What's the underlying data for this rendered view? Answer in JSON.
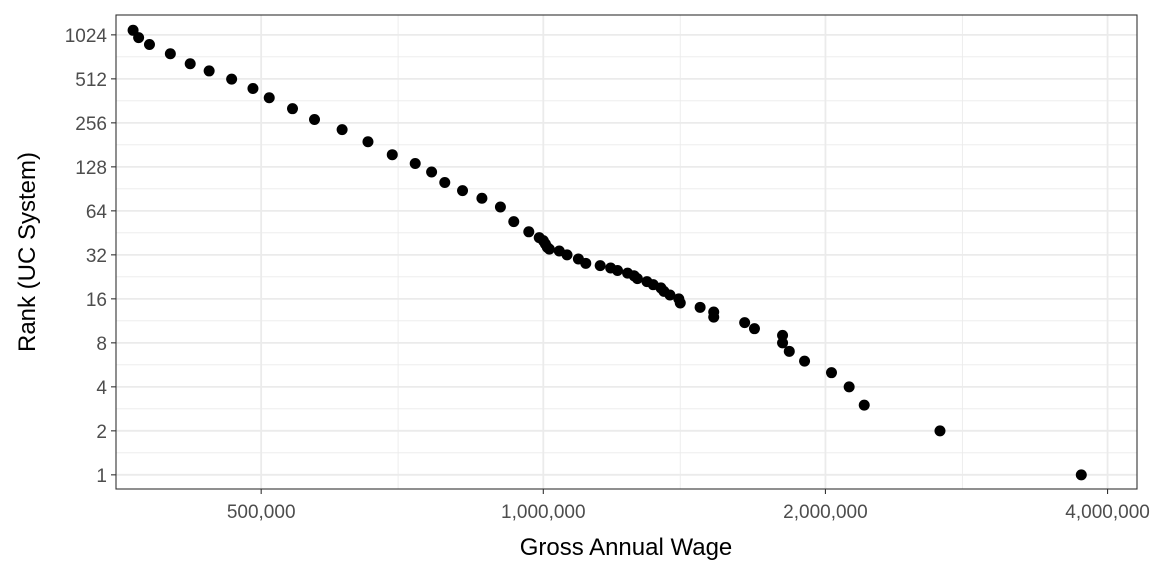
{
  "chart_data": {
    "type": "scatter",
    "title": "",
    "xlabel": "Gross Annual Wage",
    "ylabel": "Rank (UC System)",
    "x_scale": "log",
    "y_scale": "log2",
    "xlim": [
      350000,
      4300000
    ],
    "ylim": [
      0.8,
      1400
    ],
    "x_ticks": [
      {
        "value": 500000,
        "label": "500,000"
      },
      {
        "value": 1000000,
        "label": "1,000,000"
      },
      {
        "value": 2000000,
        "label": "2,000,000"
      },
      {
        "value": 4000000,
        "label": "4,000,000"
      }
    ],
    "y_ticks": [
      {
        "value": 1,
        "label": "1"
      },
      {
        "value": 2,
        "label": "2"
      },
      {
        "value": 4,
        "label": "4"
      },
      {
        "value": 8,
        "label": "8"
      },
      {
        "value": 16,
        "label": "16"
      },
      {
        "value": 32,
        "label": "32"
      },
      {
        "value": 64,
        "label": "64"
      },
      {
        "value": 128,
        "label": "128"
      },
      {
        "value": 256,
        "label": "256"
      },
      {
        "value": 512,
        "label": "512"
      },
      {
        "value": 1024,
        "label": "1024"
      }
    ],
    "x_minor_ticks": [
      700000,
      1400000,
      2800000
    ],
    "y_minor_ticks": [
      1.414,
      2.828,
      5.657,
      11.31,
      22.63,
      45.25,
      90.51,
      181.0,
      362.0,
      724.1
    ],
    "grid": true,
    "legend": "none",
    "colors": {
      "point": "#000000",
      "grid": "#ebebeb",
      "panel_border": "#333333"
    },
    "series": [
      {
        "x": [
          3750000,
          2650000,
          2200000,
          2120000,
          2030000,
          1900000,
          1830000,
          1800000,
          1800000,
          1680000,
          1640000,
          1520000,
          1520000,
          1470000,
          1400000,
          1395000,
          1365000,
          1345000,
          1335000,
          1310000,
          1290000,
          1260000,
          1250000,
          1230000,
          1200000,
          1180000,
          1150000,
          1110000,
          1090000,
          1060000,
          1040000,
          1015000,
          1010000,
          1005000,
          1000000,
          990000,
          965000,
          930000,
          900000,
          860000,
          820000,
          785000,
          760000,
          730000,
          690000,
          650000,
          610000,
          570000,
          540000,
          510000,
          490000,
          465000,
          440000,
          420000,
          400000,
          380000,
          370000,
          365000
        ],
        "y": [
          1,
          2,
          3,
          4,
          5,
          6,
          7,
          8,
          9,
          10,
          11,
          12,
          13,
          14,
          15,
          16,
          17,
          18,
          19,
          20,
          21,
          22,
          23,
          24,
          25,
          26,
          27,
          28,
          30,
          32,
          34,
          35,
          36,
          38,
          40,
          42,
          46,
          54,
          68,
          78,
          88,
          100,
          118,
          135,
          155,
          190,
          230,
          270,
          320,
          380,
          440,
          510,
          580,
          650,
          760,
          880,
          980,
          1100
        ]
      }
    ]
  }
}
